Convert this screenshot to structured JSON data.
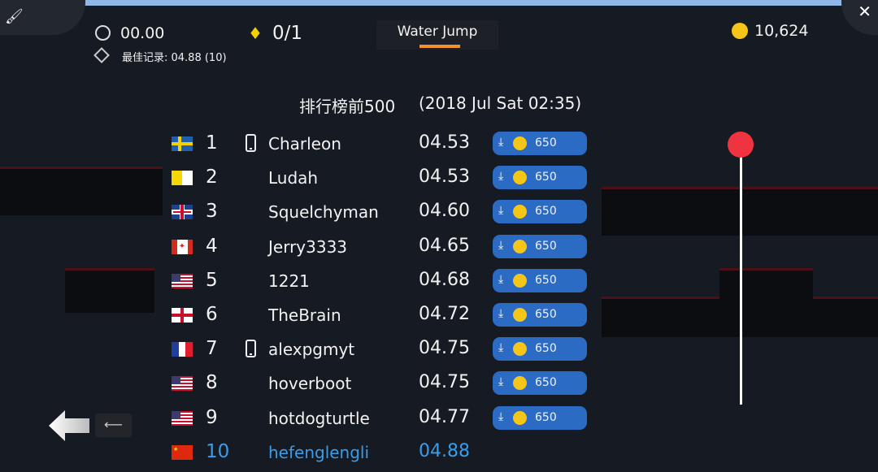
{
  "hud": {
    "timer": "00.00",
    "gems": "0/1",
    "best": "最佳记录: 04.88  (10)",
    "coins": "10,624",
    "level_title": "Water Jump"
  },
  "leaderboard": {
    "title": "排行榜前500",
    "date": "(2018 Jul Sat 02:35)",
    "rows": [
      {
        "flag": "sweden",
        "rank": "1",
        "device": "phone",
        "name": "Charleon",
        "time": "04.53",
        "reward": "650"
      },
      {
        "flag": "vatican",
        "rank": "2",
        "device": "",
        "name": "Ludah",
        "time": "04.53",
        "reward": "650"
      },
      {
        "flag": "uk",
        "rank": "3",
        "device": "",
        "name": "Squelchyman",
        "time": "04.60",
        "reward": "650"
      },
      {
        "flag": "canada",
        "rank": "4",
        "device": "",
        "name": "Jerry3333",
        "time": "04.65",
        "reward": "650"
      },
      {
        "flag": "usa",
        "rank": "5",
        "device": "",
        "name": "1221",
        "time": "04.68",
        "reward": "650"
      },
      {
        "flag": "england",
        "rank": "6",
        "device": "",
        "name": "TheBrain",
        "time": "04.72",
        "reward": "650"
      },
      {
        "flag": "france",
        "rank": "7",
        "device": "phone",
        "name": "alexpgmyt",
        "time": "04.75",
        "reward": "650"
      },
      {
        "flag": "usa",
        "rank": "8",
        "device": "",
        "name": "hoverboot",
        "time": "04.75",
        "reward": "650"
      },
      {
        "flag": "usa",
        "rank": "9",
        "device": "",
        "name": "hotdogturtle",
        "time": "04.77",
        "reward": "650"
      },
      {
        "flag": "china",
        "rank": "10",
        "device": "",
        "name": "hefenglengli",
        "time": "04.88",
        "reward": "",
        "highlight": true
      }
    ]
  },
  "scroll": {
    "position": 0
  },
  "colors": {
    "accent": "#f0932b",
    "button": "#2c6bc4",
    "highlight": "#3b9de8",
    "slider": "#ef3340",
    "coin": "#f5c518"
  },
  "icons": {
    "back": "left-arrow-icon",
    "key": "left-arrow-key-icon",
    "close": "close-icon",
    "brush": "brush-icon"
  }
}
